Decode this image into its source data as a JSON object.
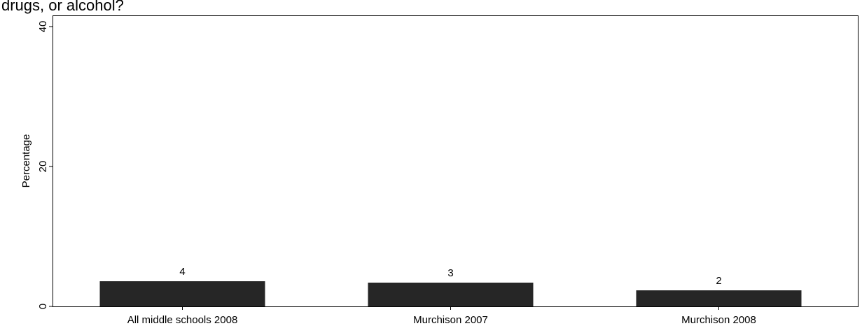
{
  "chart_data": {
    "type": "bar",
    "title": "drugs, or alcohol?",
    "xlabel": "",
    "ylabel": "Percentage",
    "categories": [
      "All middle schools 2008",
      "Murchison 2007",
      "Murchison 2008"
    ],
    "values": [
      3.6,
      3.4,
      2.3
    ],
    "data_labels": [
      "4",
      "3",
      "2"
    ],
    "yticks": [
      "0",
      "20",
      "40"
    ],
    "ylim": [
      0,
      40
    ],
    "grid": false,
    "legend": "none",
    "bar_color": "#262626",
    "axis_color": "#000000"
  }
}
